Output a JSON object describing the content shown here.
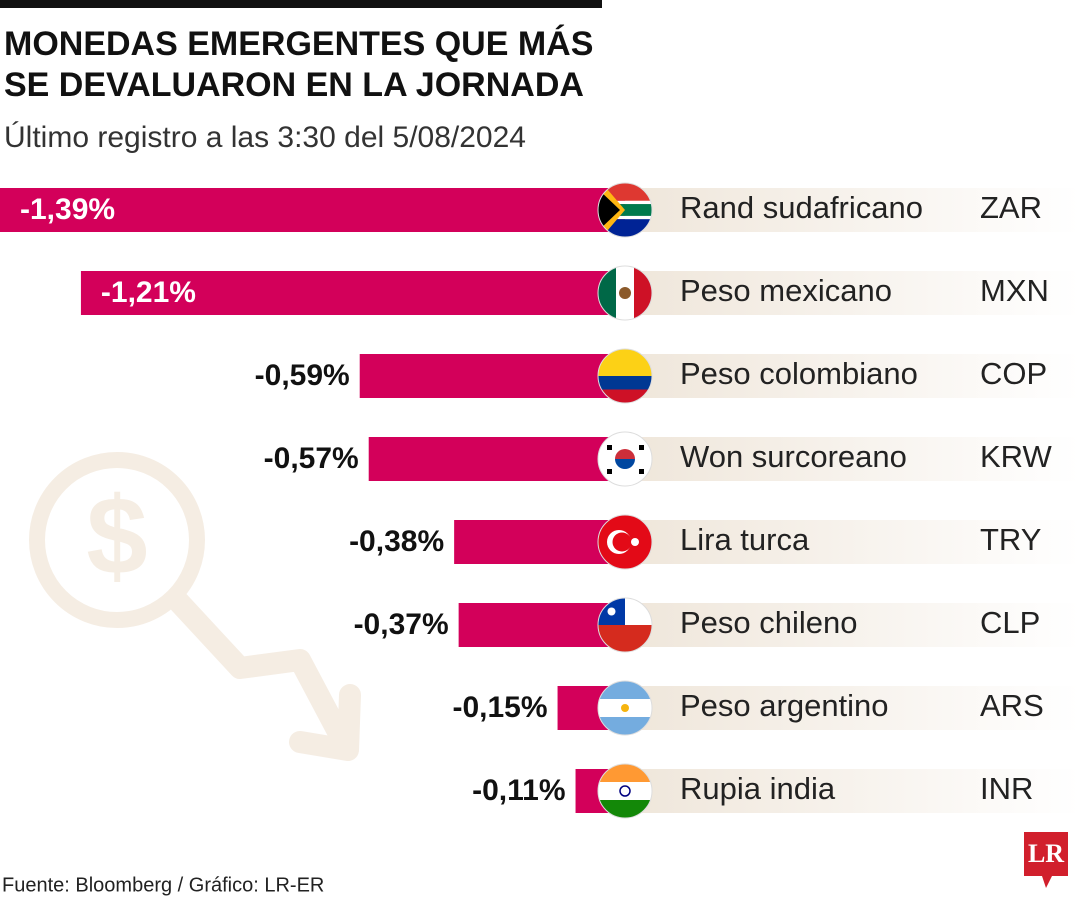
{
  "chart_data": {
    "type": "bar",
    "title": "MONEDAS EMERGENTES QUE MÁS",
    "title_line2": "SE DEVALUARON EN LA JORNADA",
    "subtitle": "Último registro a las 3:30 del 5/08/2024",
    "categories": [
      "Rand sudafricano",
      "Peso mexicano",
      "Peso colombiano",
      "Won surcoreano",
      "Lira turca",
      "Peso chileno",
      "Peso argentino",
      "Rupia india"
    ],
    "codes": [
      "ZAR",
      "MXN",
      "COP",
      "KRW",
      "TRY",
      "CLP",
      "ARS",
      "INR"
    ],
    "values": [
      -1.39,
      -1.21,
      -0.59,
      -0.57,
      -0.38,
      -0.37,
      -0.15,
      -0.11
    ],
    "value_labels": [
      "-1,39%",
      "-1,21%",
      "-0,59%",
      "-0,57%",
      "-0,38%",
      "-0,37%",
      "-0,15%",
      "-0,11%"
    ],
    "color": "#d3005a",
    "source": "Fuente: Bloomberg / Gráfico: LR-ER",
    "logo": "LR"
  }
}
